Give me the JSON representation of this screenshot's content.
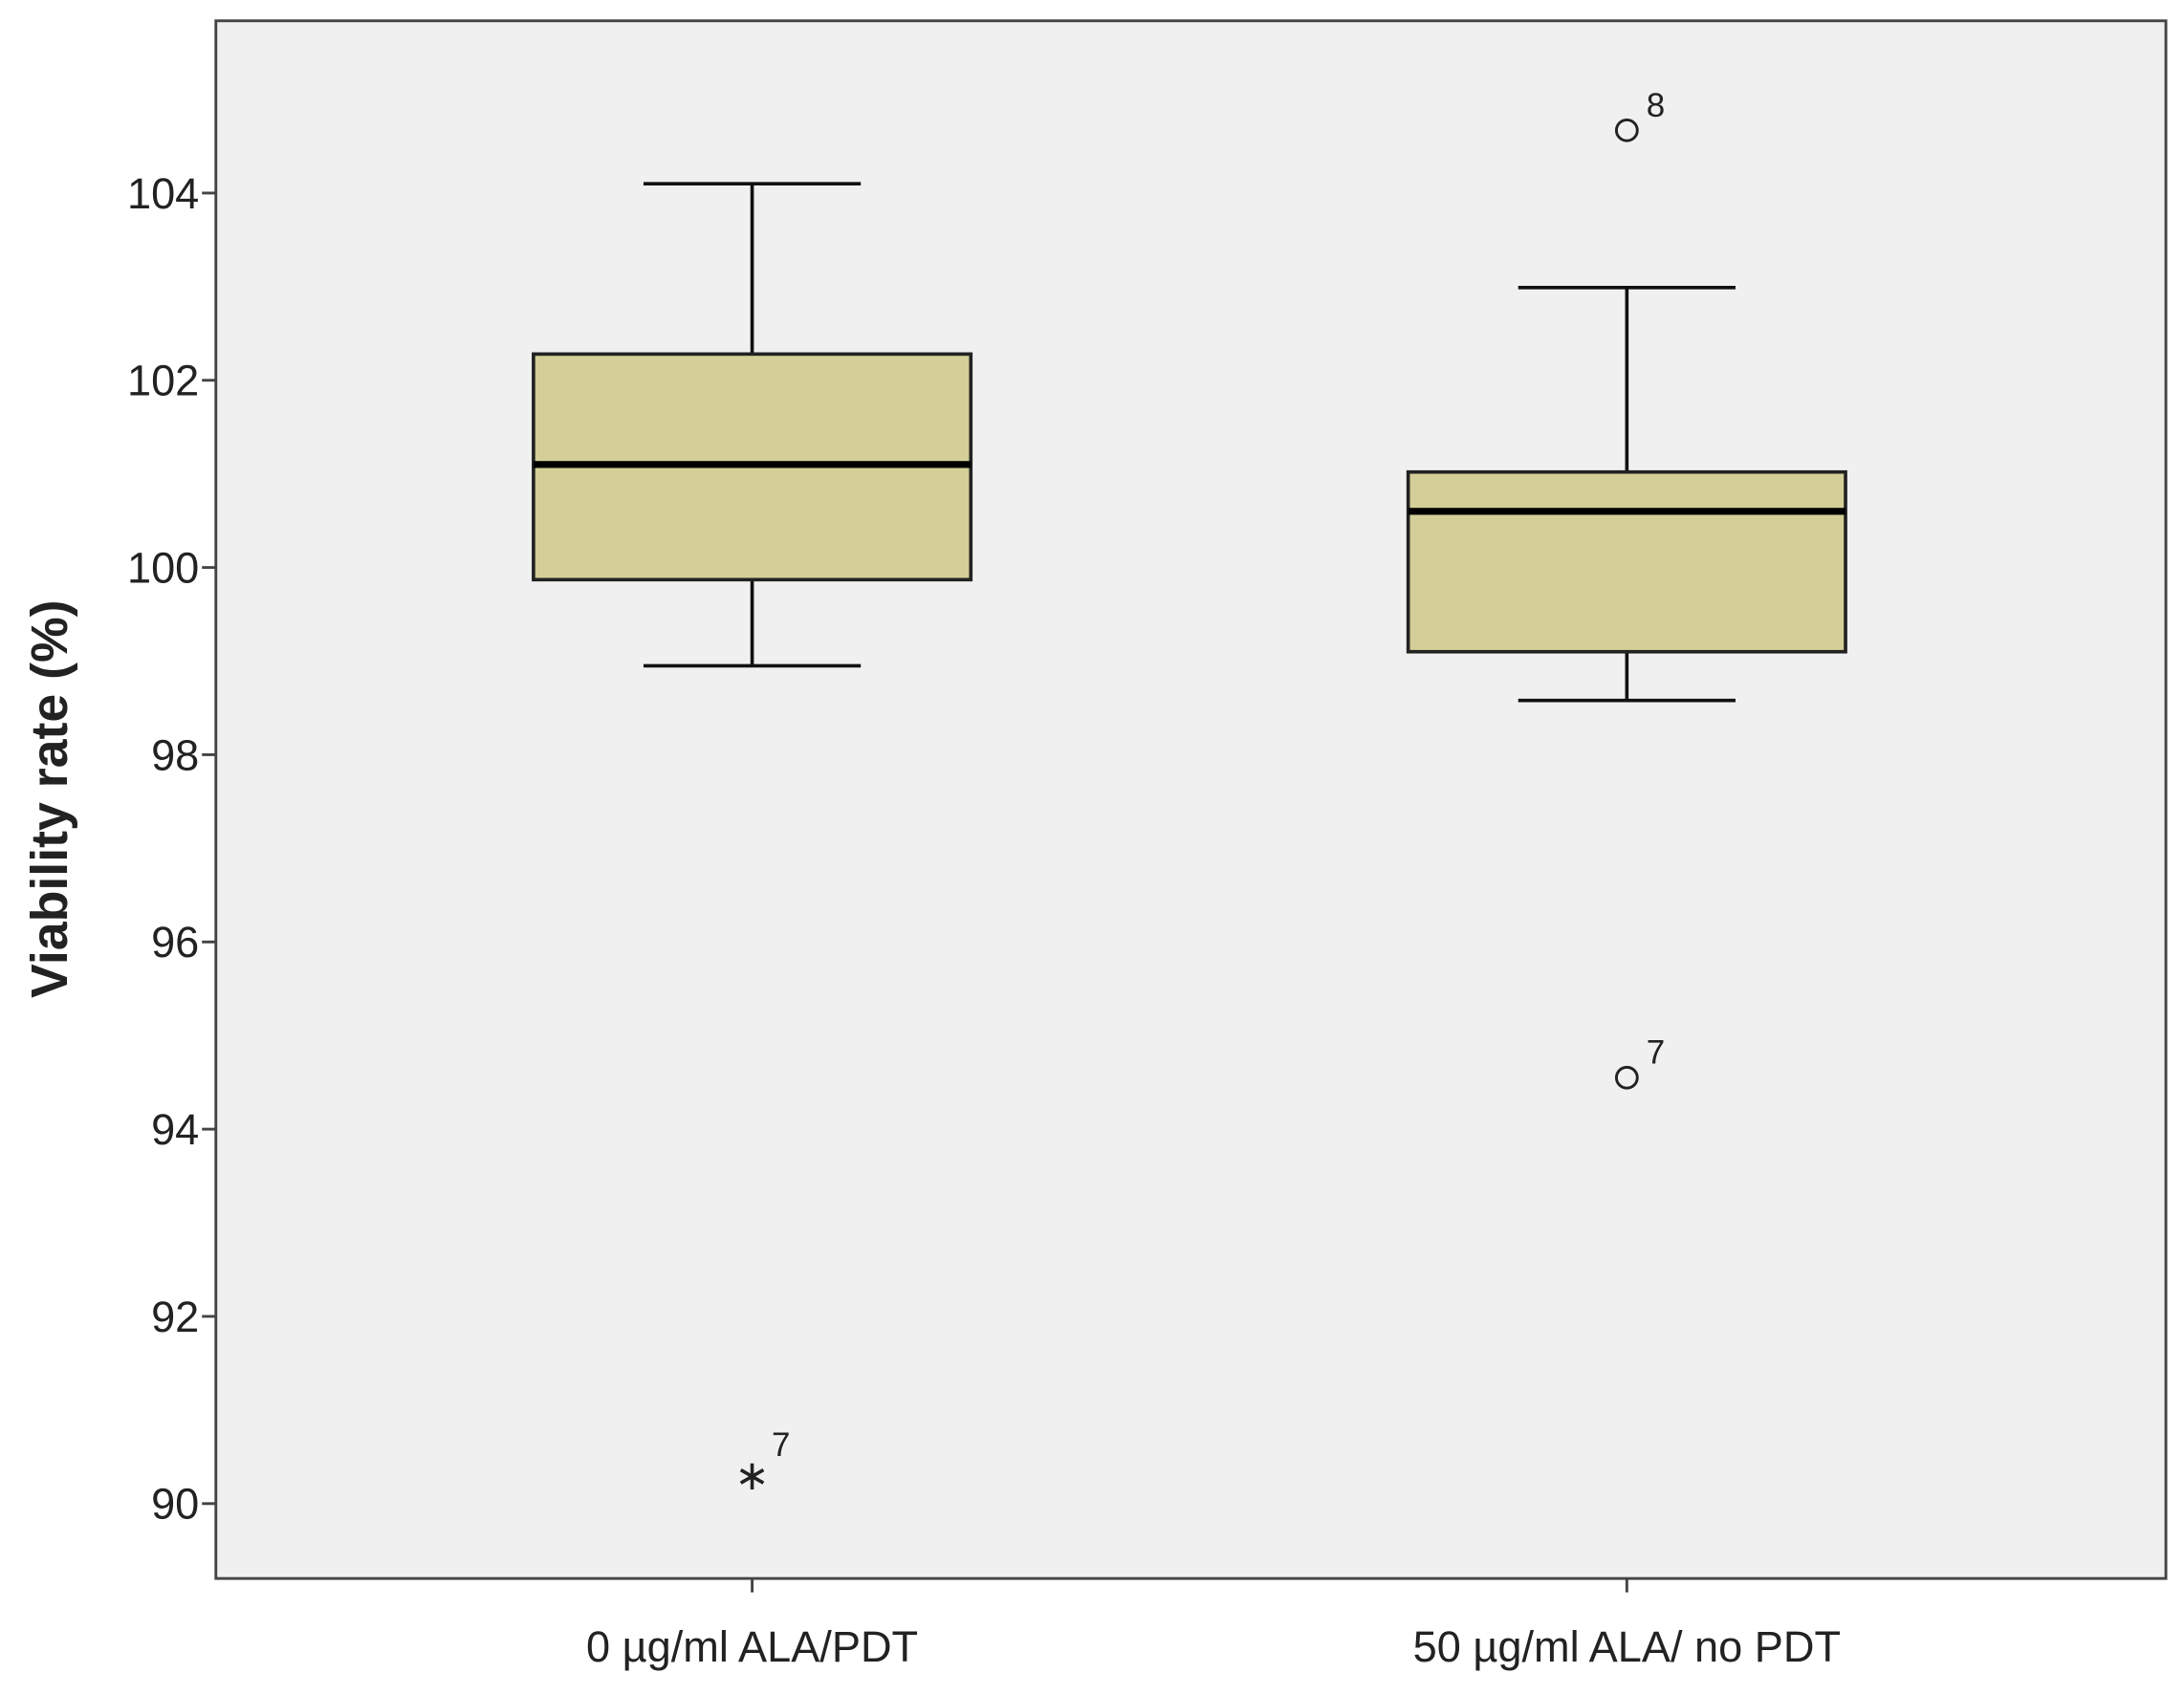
{
  "chart_data": {
    "type": "box",
    "ylabel": "Viability rate (%)",
    "categories": [
      "0 µg/ml ALA/PDT",
      "50 µg/ml ALA/ no PDT"
    ],
    "boxes": [
      {
        "min": 98.95,
        "q1": 99.87,
        "median": 101.1,
        "q3": 102.28,
        "max": 104.1
      },
      {
        "min": 98.58,
        "q1": 99.1,
        "median": 100.6,
        "q3": 101.02,
        "max": 102.99
      }
    ],
    "outliers": [
      [
        {
          "value": 90.36,
          "label": "7",
          "marker": "star"
        }
      ],
      [
        {
          "value": 104.67,
          "label": "8",
          "marker": "circle"
        },
        {
          "value": 94.55,
          "label": "7",
          "marker": "circle"
        }
      ]
    ],
    "color": "#d4cf98",
    "background": "#f0f0f0",
    "ylim": [
      89.2,
      105.84
    ],
    "yticks": [
      90,
      92,
      94,
      96,
      98,
      100,
      102,
      104
    ],
    "grid": false
  }
}
